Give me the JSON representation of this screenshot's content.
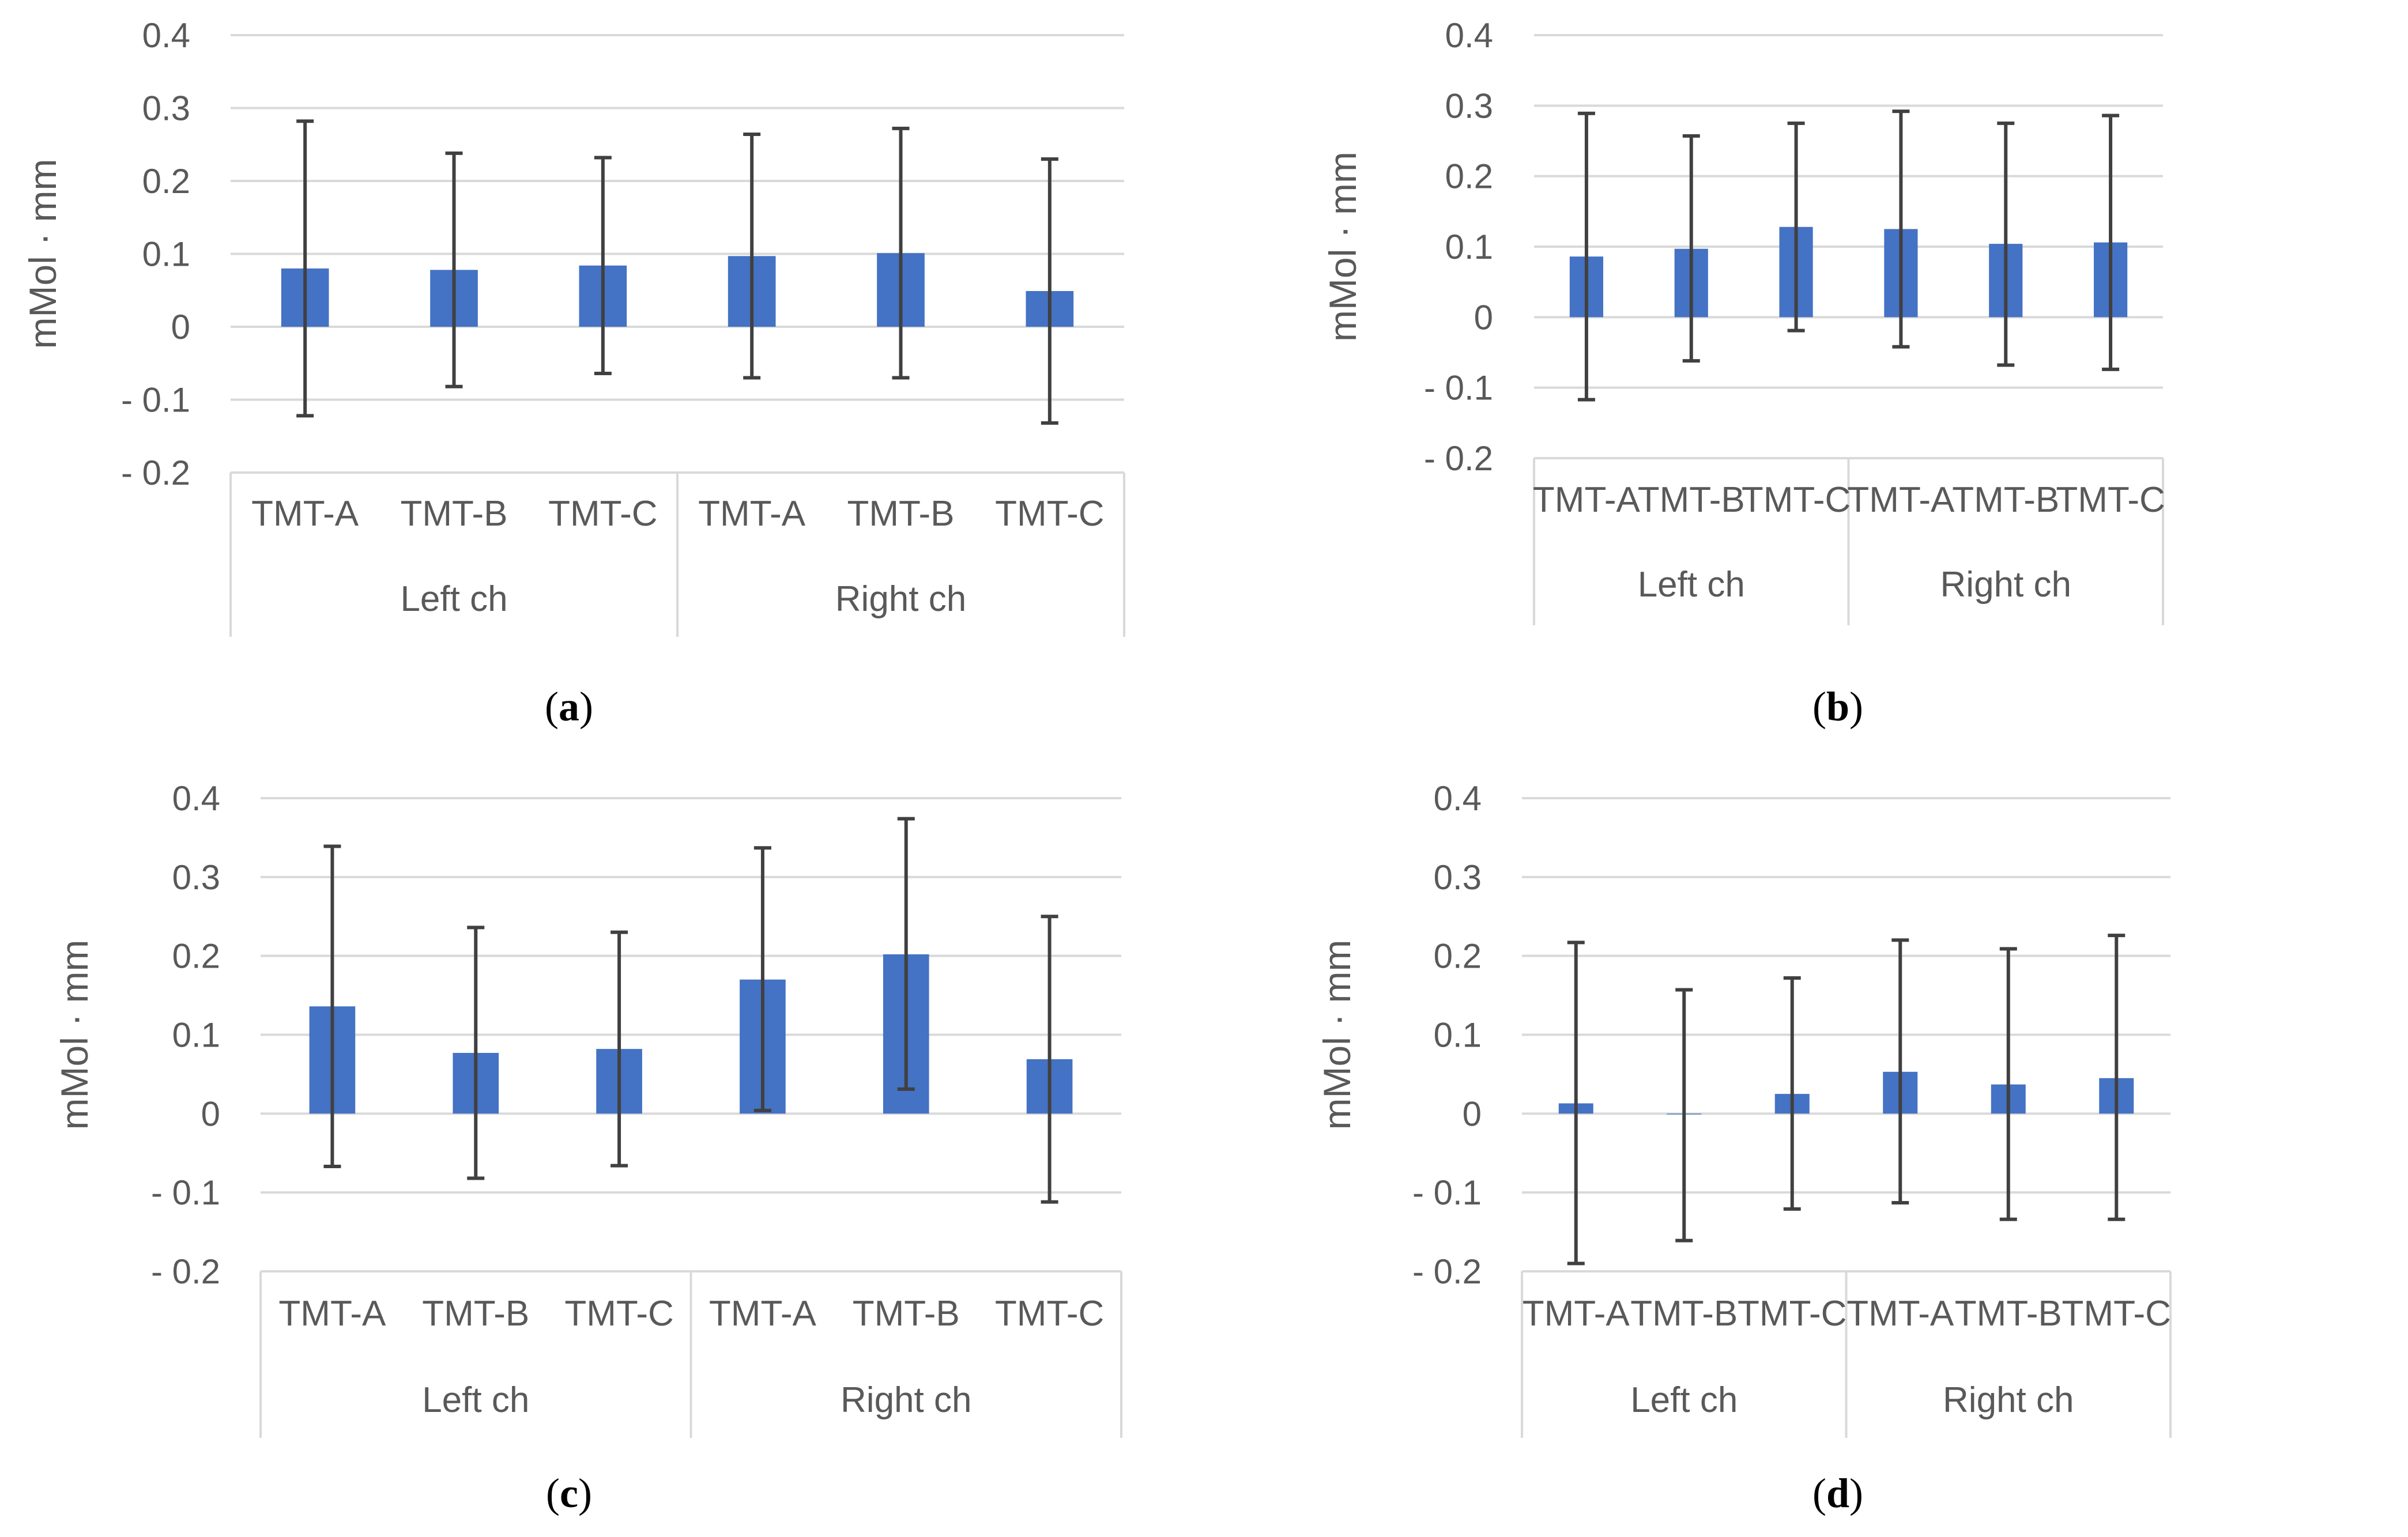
{
  "colors": {
    "bar": "#4472C4",
    "grid": "#D9D9D9",
    "errorbar": "#404040",
    "axis_text": "#595959"
  },
  "chart_data": [
    {
      "type": "bar",
      "panel": "a",
      "caption": "a",
      "ylabel": "mMol · mm",
      "ylim": [
        -0.2,
        0.4
      ],
      "y_ticks": [
        "0.4",
        "0.3",
        "0.2",
        "0.1",
        "0",
        "- 0.1",
        "- 0.2"
      ],
      "y_tick_values": [
        0.4,
        0.3,
        0.2,
        0.1,
        0,
        -0.1,
        -0.2
      ],
      "categories": [
        "TMT-A",
        "TMT-B",
        "TMT-C",
        "TMT-A",
        "TMT-B",
        "TMT-C"
      ],
      "groups": [
        "Left ch",
        "Right ch"
      ],
      "values": [
        0.08,
        0.078,
        0.084,
        0.097,
        0.101,
        0.049
      ],
      "err_high": [
        0.282,
        0.238,
        0.232,
        0.264,
        0.272,
        0.23
      ],
      "err_low": [
        -0.122,
        -0.082,
        -0.064,
        -0.07,
        -0.07,
        -0.132
      ]
    },
    {
      "type": "bar",
      "panel": "b",
      "caption": "b",
      "ylabel": "mMol · mm",
      "ylim": [
        -0.2,
        0.4
      ],
      "y_ticks": [
        "0.4",
        "0.3",
        "0.2",
        "0.1",
        "0",
        "- 0.1",
        "- 0.2"
      ],
      "y_tick_values": [
        0.4,
        0.3,
        0.2,
        0.1,
        0,
        -0.1,
        -0.2
      ],
      "categories": [
        "TMT-A",
        "TMT-B",
        "TMT-C",
        "TMT-A",
        "TMT-B",
        "TMT-C"
      ],
      "groups": [
        "Left ch",
        "Right ch"
      ],
      "values": [
        0.086,
        0.097,
        0.128,
        0.125,
        0.104,
        0.106
      ],
      "err_high": [
        0.289,
        0.257,
        0.275,
        0.292,
        0.275,
        0.286
      ],
      "err_low": [
        -0.117,
        -0.062,
        -0.019,
        -0.042,
        -0.068,
        -0.074
      ]
    },
    {
      "type": "bar",
      "panel": "c",
      "caption": "c",
      "ylabel": "mMol · mm",
      "ylim": [
        -0.2,
        0.4
      ],
      "y_ticks": [
        "0.4",
        "0.3",
        "0.2",
        "0.1",
        "0",
        "- 0.1",
        "- 0.2"
      ],
      "y_tick_values": [
        0.4,
        0.3,
        0.2,
        0.1,
        0,
        -0.1,
        -0.2
      ],
      "categories": [
        "TMT-A",
        "TMT-B",
        "TMT-C",
        "TMT-A",
        "TMT-B",
        "TMT-C"
      ],
      "groups": [
        "Left ch",
        "Right ch"
      ],
      "values": [
        0.136,
        0.077,
        0.082,
        0.17,
        0.202,
        0.069
      ],
      "err_high": [
        0.339,
        0.236,
        0.23,
        0.337,
        0.374,
        0.25
      ],
      "err_low": [
        -0.067,
        -0.082,
        -0.066,
        0.004,
        0.031,
        -0.112
      ]
    },
    {
      "type": "bar",
      "panel": "d",
      "caption": "d",
      "ylabel": "mMol · mm",
      "ylim": [
        -0.2,
        0.4
      ],
      "y_ticks": [
        "0.4",
        "0.3",
        "0.2",
        "0.1",
        "0",
        "- 0.1",
        "- 0.2"
      ],
      "y_tick_values": [
        0.4,
        0.3,
        0.2,
        0.1,
        0,
        -0.1,
        -0.2
      ],
      "categories": [
        "TMT-A",
        "TMT-B",
        "TMT-C",
        "TMT-A",
        "TMT-B",
        "TMT-C"
      ],
      "groups": [
        "Left ch",
        "Right ch"
      ],
      "values": [
        0.013,
        -0.001,
        0.025,
        0.053,
        0.037,
        0.045
      ],
      "err_high": [
        0.217,
        0.157,
        0.172,
        0.22,
        0.209,
        0.226
      ],
      "err_low": [
        -0.19,
        -0.161,
        -0.121,
        -0.113,
        -0.134,
        -0.134
      ]
    }
  ]
}
